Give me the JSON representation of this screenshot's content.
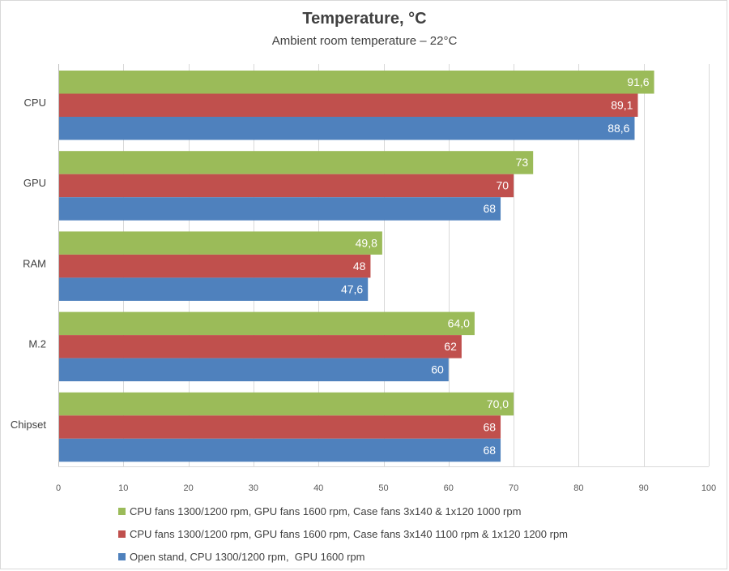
{
  "chart_data": {
    "type": "bar",
    "orientation": "horizontal",
    "title": "Temperature, °C",
    "subtitle": "Ambient room temperature – 22°C",
    "categories": [
      "CPU",
      "GPU",
      "RAM",
      "M.2",
      "Chipset"
    ],
    "series": [
      {
        "name": "CPU fans 1300/1200 rpm, GPU fans 1600 rpm, Case fans 3x140 & 1x120 1000 rpm",
        "color": "#9bbb59",
        "values": [
          91.6,
          73,
          49.8,
          64.0,
          70.0
        ],
        "labels": [
          "91,6",
          "73",
          "49,8",
          "64,0",
          "70,0"
        ]
      },
      {
        "name": "CPU fans 1300/1200 rpm, GPU fans 1600 rpm, Case fans 3x140 1100 rpm & 1x120 1200 rpm",
        "color": "#c0504d",
        "values": [
          89.1,
          70,
          48,
          62,
          68
        ],
        "labels": [
          "89,1",
          "70",
          "48",
          "62",
          "68"
        ]
      },
      {
        "name": "Open stand, CPU 1300/1200 rpm,  GPU 1600 rpm",
        "color": "#4f81bd",
        "values": [
          88.6,
          68,
          47.6,
          60,
          68
        ],
        "labels": [
          "88,6",
          "68",
          "47,6",
          "60",
          "68"
        ]
      }
    ],
    "xlim": [
      0,
      100
    ],
    "xticks": [
      0,
      10,
      20,
      30,
      40,
      50,
      60,
      70,
      80,
      90,
      100
    ],
    "grid": true,
    "legend_position": "bottom"
  }
}
